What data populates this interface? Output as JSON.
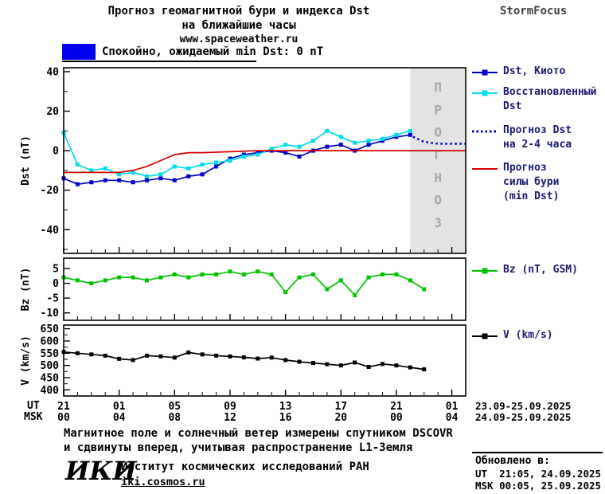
{
  "header": {
    "title_line1": "Прогноз геомагнитной бури и индекса Dst",
    "title_line2": "на ближайшие часы",
    "site_url": "www.spaceweather.ru",
    "brand": "StormFocus"
  },
  "banner": {
    "text": "Спокойно, ожидаемый min Dst: 0 nT",
    "swatch_color": "#0000ee"
  },
  "legend": {
    "items": [
      {
        "key": "dst_kyoto",
        "lines": [
          "Dst, Киото"
        ],
        "color": "#0000cc",
        "marker": "square",
        "style": "solid"
      },
      {
        "key": "dst_restored",
        "lines": [
          "Восстановленный",
          "Dst"
        ],
        "color": "#00dde8",
        "marker": "square",
        "style": "solid"
      },
      {
        "key": "dst_forecast",
        "lines": [
          "Прогноз Dst",
          "на 2-4 часа"
        ],
        "color": "#0000cc",
        "marker": "none",
        "style": "dotted"
      },
      {
        "key": "storm_forecast",
        "lines": [
          "Прогноз",
          "силы бури",
          "(min Dst)"
        ],
        "color": "#d40000",
        "marker": "none",
        "style": "solid"
      },
      {
        "key": "bz",
        "lines": [
          "Bz (nT, GSM)"
        ],
        "color": "#00c400",
        "marker": "square",
        "style": "solid"
      },
      {
        "key": "v",
        "lines": [
          "V (km/s)"
        ],
        "color": "#000000",
        "marker": "square",
        "style": "solid"
      }
    ]
  },
  "footer": {
    "note_line1": "Магнитное поле и солнечный ветер измерены спутником DSCOVR",
    "note_line2": "и сдвинуты вперед, учитывая распространение L1-Земля",
    "logo": "ИКИ",
    "institute": "Институт космических исследований РАН",
    "institute_url": "iki.cosmos.ru",
    "updated_label": "Обновлено в:",
    "updated_ut": "UT  21:05, 24.09.2025",
    "updated_msk": "MSK 00:05, 25.09.2025"
  },
  "chart_data": {
    "type": "line",
    "x_axis": {
      "x_unit": "hours from 21:00 UT 23.09.2025",
      "xlim": [
        0,
        29
      ],
      "tick_hours": [
        0,
        4,
        8,
        12,
        16,
        20,
        24,
        28
      ],
      "tick_labels_ut": [
        "21",
        "01",
        "05",
        "09",
        "13",
        "17",
        "21",
        "01"
      ],
      "tick_labels_msk": [
        "00",
        "04",
        "08",
        "12",
        "16",
        "20",
        "00",
        "04"
      ],
      "row_label_ut": "UT",
      "row_label_msk": "MSK",
      "date_range_ut": "23.09-25.09.2025",
      "date_range_msk": "24.09-25.09.2025"
    },
    "panels": [
      {
        "ylabel": "Dst (nT)",
        "ylim": [
          -52,
          42
        ],
        "yticks": [
          40,
          20,
          0,
          -20,
          -40
        ],
        "minor_step": 10,
        "forecast_region": [
          25,
          29
        ],
        "forecast_label": "ПРОГНОЗ",
        "series": [
          {
            "name": "Dst, Киото",
            "color": "#0000cc",
            "marker": "square",
            "style": "solid",
            "x": [
              0,
              1,
              2,
              3,
              4,
              5,
              6,
              7,
              8,
              9,
              10,
              11,
              12,
              13,
              14,
              15,
              16,
              17,
              18,
              19,
              20,
              21,
              22,
              23,
              24,
              25
            ],
            "y": [
              -14,
              -17,
              -16,
              -15,
              -15,
              -16,
              -15,
              -14,
              -15,
              -13,
              -12,
              -8,
              -4,
              -2,
              -1,
              0,
              -1,
              -3,
              0,
              2,
              3,
              0,
              3,
              5,
              7,
              8
            ]
          },
          {
            "name": "Восстановленный Dst",
            "color": "#00dde8",
            "marker": "square",
            "style": "solid",
            "x": [
              0,
              1,
              2,
              3,
              4,
              5,
              6,
              7,
              8,
              9,
              10,
              11,
              12,
              13,
              14,
              15,
              16,
              17,
              18,
              19,
              20,
              21,
              22,
              23,
              24,
              25
            ],
            "y": [
              9,
              -7,
              -10,
              -9,
              -12,
              -11,
              -13,
              -12,
              -8,
              -9,
              -7,
              -6,
              -5,
              -3,
              -2,
              1,
              3,
              2,
              5,
              10,
              7,
              4,
              5,
              6,
              8,
              10
            ]
          },
          {
            "name": "Прогноз Dst на 2-4 часа",
            "color": "#0000cc",
            "marker": "none",
            "style": "dotted",
            "x": [
              25.2,
              26,
              27,
              28,
              29
            ],
            "y": [
              7,
              4.5,
              3.5,
              3.5,
              3.5
            ]
          },
          {
            "name": "Прогноз силы бури (min Dst)",
            "color": "#d40000",
            "marker": "none",
            "style": "solid",
            "x": [
              0,
              4,
              5,
              6,
              7,
              8,
              9,
              10,
              14,
              29
            ],
            "y": [
              -11,
              -11,
              -10,
              -8,
              -5,
              -2,
              -1,
              -1,
              0,
              0
            ]
          }
        ]
      },
      {
        "ylabel": "Bz (nT)",
        "ylim": [
          -12.5,
          8.5
        ],
        "yticks": [
          5,
          0,
          -5,
          -10
        ],
        "series": [
          {
            "name": "Bz (nT, GSM)",
            "color": "#00c400",
            "marker": "square",
            "style": "solid",
            "x": [
              0,
              1,
              2,
              3,
              4,
              5,
              6,
              7,
              8,
              9,
              10,
              11,
              12,
              13,
              14,
              15,
              16,
              17,
              18,
              19,
              20,
              21,
              22,
              23,
              24,
              25,
              26
            ],
            "y": [
              2,
              1,
              0,
              1,
              2,
              2,
              1,
              2,
              3,
              2,
              3,
              3,
              4,
              3,
              4,
              3,
              -3,
              2,
              3,
              -2,
              1,
              -4,
              2,
              3,
              3,
              1,
              -2
            ]
          }
        ]
      },
      {
        "ylabel": "V (km/s)",
        "ylim": [
          375,
          665
        ],
        "yticks": [
          650,
          600,
          550,
          500,
          450,
          400
        ],
        "minor_step": 25,
        "series": [
          {
            "name": "V (km/s)",
            "color": "#000000",
            "marker": "square",
            "style": "solid",
            "x": [
              0,
              1,
              2,
              3,
              4,
              5,
              6,
              7,
              8,
              9,
              10,
              11,
              12,
              13,
              14,
              15,
              16,
              17,
              18,
              19,
              20,
              21,
              22,
              23,
              24,
              25,
              26
            ],
            "y": [
              555,
              550,
              545,
              540,
              527,
              522,
              540,
              537,
              532,
              553,
              545,
              540,
              537,
              533,
              528,
              532,
              522,
              515,
              510,
              505,
              500,
              512,
              494,
              506,
              500,
              492,
              484
            ]
          }
        ]
      }
    ]
  }
}
